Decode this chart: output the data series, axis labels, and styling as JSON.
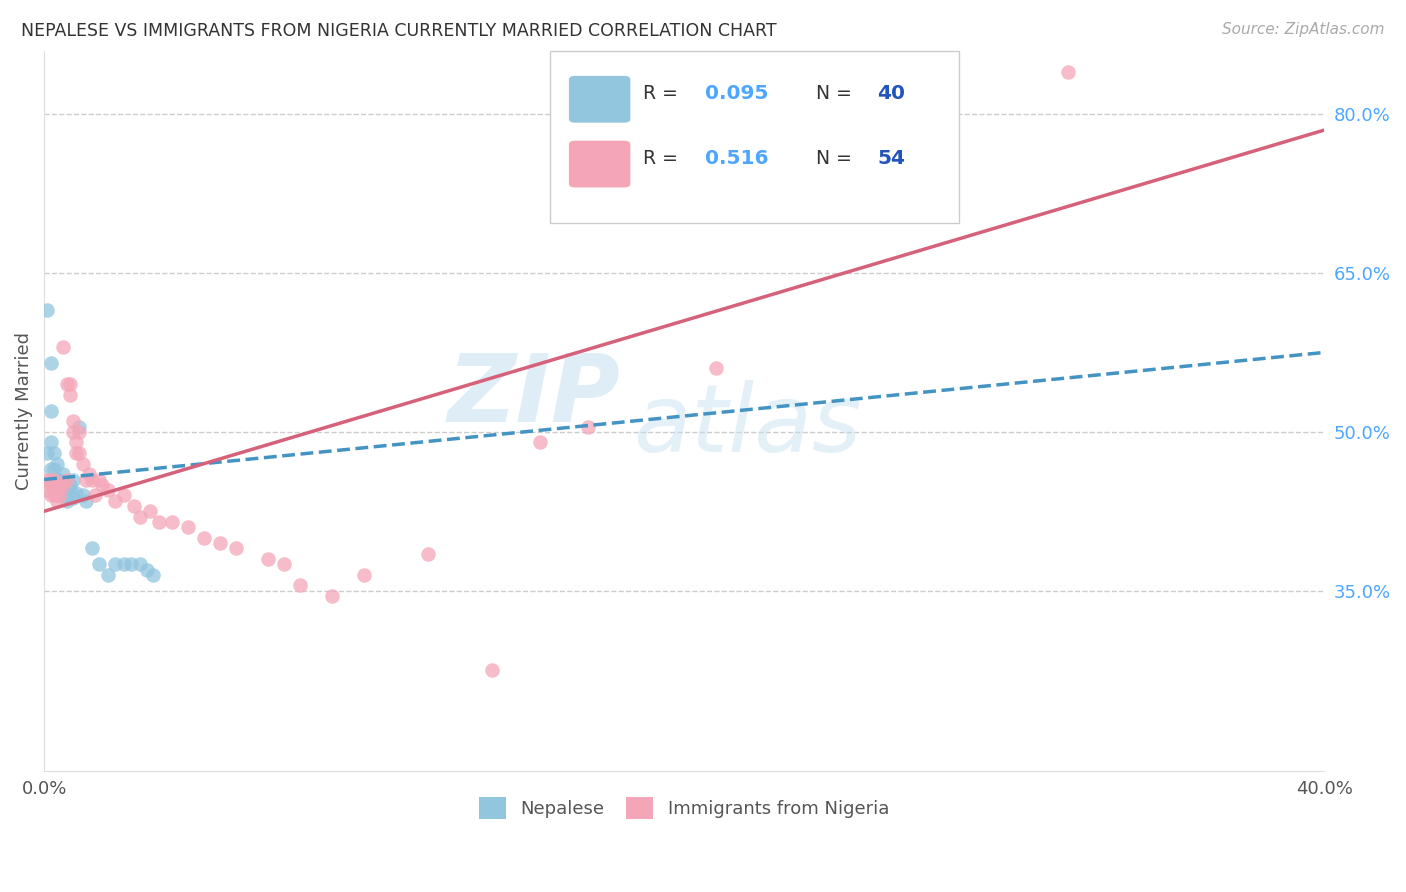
{
  "title": "NEPALESE VS IMMIGRANTS FROM NIGERIA CURRENTLY MARRIED CORRELATION CHART",
  "source": "Source: ZipAtlas.com",
  "ylabel": "Currently Married",
  "x_min": 0.0,
  "x_max": 0.4,
  "y_min": 0.18,
  "y_max": 0.86,
  "y_ticks_right": [
    0.35,
    0.5,
    0.65,
    0.8
  ],
  "y_tick_labels_right": [
    "35.0%",
    "50.0%",
    "65.0%",
    "80.0%"
  ],
  "watermark_zip": "ZIP",
  "watermark_atlas": "atlas",
  "blue_color": "#92c5de",
  "pink_color": "#f4a6b8",
  "blue_line_color": "#4393c3",
  "pink_line_color": "#d6617a",
  "blue_line_x0": 0.0,
  "blue_line_y0": 0.455,
  "blue_line_x1": 0.4,
  "blue_line_y1": 0.575,
  "pink_line_x0": 0.0,
  "pink_line_y0": 0.425,
  "pink_line_x1": 0.4,
  "pink_line_y1": 0.785,
  "nepalese_x": [
    0.001,
    0.001,
    0.002,
    0.002,
    0.002,
    0.002,
    0.003,
    0.003,
    0.003,
    0.003,
    0.004,
    0.004,
    0.004,
    0.004,
    0.005,
    0.005,
    0.005,
    0.006,
    0.006,
    0.006,
    0.007,
    0.007,
    0.007,
    0.008,
    0.008,
    0.009,
    0.009,
    0.01,
    0.011,
    0.012,
    0.013,
    0.015,
    0.017,
    0.02,
    0.022,
    0.025,
    0.027,
    0.03,
    0.032,
    0.034
  ],
  "nepalese_y": [
    0.615,
    0.48,
    0.565,
    0.52,
    0.49,
    0.465,
    0.48,
    0.465,
    0.455,
    0.445,
    0.47,
    0.455,
    0.45,
    0.44,
    0.455,
    0.45,
    0.445,
    0.46,
    0.45,
    0.44,
    0.445,
    0.44,
    0.435,
    0.45,
    0.445,
    0.455,
    0.438,
    0.442,
    0.505,
    0.44,
    0.435,
    0.39,
    0.375,
    0.365,
    0.375,
    0.375,
    0.375,
    0.375,
    0.37,
    0.365
  ],
  "nigeria_x": [
    0.001,
    0.001,
    0.002,
    0.002,
    0.002,
    0.003,
    0.003,
    0.003,
    0.004,
    0.004,
    0.005,
    0.005,
    0.006,
    0.006,
    0.007,
    0.007,
    0.008,
    0.008,
    0.009,
    0.009,
    0.01,
    0.01,
    0.011,
    0.011,
    0.012,
    0.013,
    0.014,
    0.015,
    0.016,
    0.017,
    0.018,
    0.02,
    0.022,
    0.025,
    0.028,
    0.03,
    0.033,
    0.036,
    0.04,
    0.045,
    0.05,
    0.055,
    0.06,
    0.07,
    0.075,
    0.08,
    0.09,
    0.1,
    0.12,
    0.14,
    0.155,
    0.17,
    0.21,
    0.32
  ],
  "nigeria_y": [
    0.455,
    0.445,
    0.45,
    0.44,
    0.455,
    0.445,
    0.44,
    0.455,
    0.445,
    0.435,
    0.45,
    0.44,
    0.58,
    0.45,
    0.545,
    0.455,
    0.545,
    0.535,
    0.51,
    0.5,
    0.49,
    0.48,
    0.5,
    0.48,
    0.47,
    0.455,
    0.46,
    0.455,
    0.44,
    0.455,
    0.45,
    0.445,
    0.435,
    0.44,
    0.43,
    0.42,
    0.425,
    0.415,
    0.415,
    0.41,
    0.4,
    0.395,
    0.39,
    0.38,
    0.375,
    0.355,
    0.345,
    0.365,
    0.385,
    0.275,
    0.49,
    0.505,
    0.56,
    0.84
  ]
}
